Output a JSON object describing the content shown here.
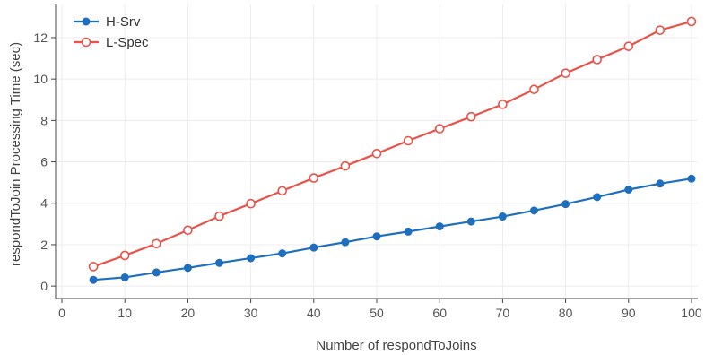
{
  "chart_data": {
    "type": "line",
    "title": "",
    "xlabel": "Number of respondToJoins",
    "ylabel": "respondToJoin Processing Time (sec)",
    "xlim": [
      -1,
      101
    ],
    "ylim": [
      -0.6,
      13.6
    ],
    "xticks": [
      0,
      10,
      20,
      30,
      40,
      50,
      60,
      70,
      80,
      90,
      100
    ],
    "yticks": [
      0,
      2,
      4,
      6,
      8,
      10,
      12
    ],
    "grid": true,
    "legend_position": "top-left",
    "series": [
      {
        "name": "H-Srv",
        "color": "#1f6fbf",
        "marker": "filled-circle",
        "x": [
          5,
          10,
          15,
          20,
          25,
          30,
          35,
          40,
          45,
          50,
          55,
          60,
          65,
          70,
          75,
          80,
          85,
          90,
          95,
          100
        ],
        "y": [
          0.3,
          0.42,
          0.66,
          0.88,
          1.12,
          1.35,
          1.58,
          1.86,
          2.12,
          2.4,
          2.63,
          2.88,
          3.12,
          3.36,
          3.65,
          3.96,
          4.3,
          4.66,
          4.95,
          5.19
        ]
      },
      {
        "name": "L-Spec",
        "color": "#e8534a",
        "marker": "open-circle",
        "x": [
          5,
          10,
          15,
          20,
          25,
          30,
          35,
          40,
          45,
          50,
          55,
          60,
          65,
          70,
          75,
          80,
          85,
          90,
          95,
          100
        ],
        "y": [
          0.94,
          1.48,
          2.05,
          2.7,
          3.38,
          3.98,
          4.6,
          5.22,
          5.8,
          6.4,
          7.02,
          7.6,
          8.18,
          8.78,
          9.5,
          10.28,
          10.94,
          11.58,
          12.36,
          12.78
        ]
      }
    ]
  }
}
